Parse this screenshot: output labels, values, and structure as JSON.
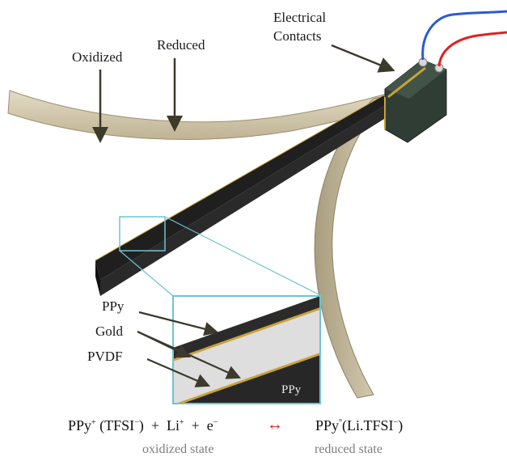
{
  "labels": {
    "oxidized": "Oxidized",
    "reduced": "Reduced",
    "electrical_contacts_line1": "Electrical",
    "electrical_contacts_line2": "Contacts",
    "ppy": "PPy",
    "gold": "Gold",
    "pvdf": "PVDF",
    "inset_ppy": "PPy"
  },
  "equation": {
    "left_ppy": "PPy",
    "left_ppy_charge": "+",
    "left_anion_open": "(TFSI",
    "left_anion_charge": "−",
    "left_anion_close": ")",
    "plus1": "+",
    "li": "Li",
    "li_charge": "+",
    "plus2": "+",
    "electron": "e",
    "electron_charge": "−",
    "arrow": "↔",
    "right_ppy": "PPy",
    "right_ppy_charge": "°",
    "right_complex_open": "(Li.TFSI",
    "right_complex_charge": "−",
    "right_complex_close": ")",
    "oxidized_state": "oxidized state",
    "reduced_state": "reduced state"
  },
  "colors": {
    "film": "#cfc4a8",
    "film_edge": "#8f8466",
    "dark_layer": "#262626",
    "gold": "#c9a23a",
    "inset_border": "#6fc3cf",
    "clamp": "#2f3d35",
    "wire_blue": "#2b5bd1",
    "wire_red": "#e02121",
    "arrow": "#4a4530",
    "equation_arrow": "#e01b1b"
  }
}
